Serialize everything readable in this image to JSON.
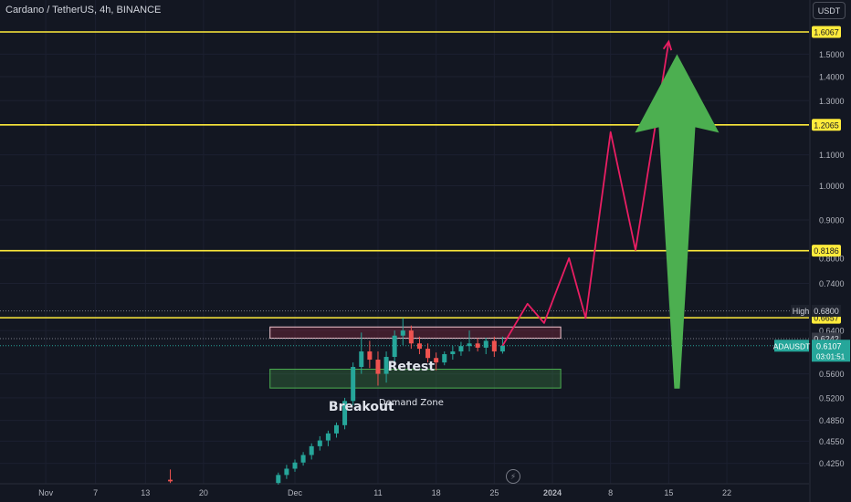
{
  "header": {
    "symbol_title": "Cardano / TetherUS, 4h, BINANCE",
    "currency_button": "USDT"
  },
  "colors": {
    "background": "#131722",
    "level_line": "#ffeb3b",
    "projection": "#e91e63",
    "arrow": "#4caf50",
    "candle_up": "#26a69a",
    "candle_down": "#ef5350",
    "axis_text": "#b2b5be",
    "grid": "#2a2e39"
  },
  "icons": {
    "replay": "lightning-icon"
  },
  "chart_data": {
    "type": "candlestick",
    "y_scale": "log",
    "ylim": [
      0.41,
      1.7
    ],
    "x_ticks": [
      {
        "label": "Nov",
        "date": "2023-11-01"
      },
      {
        "label": "7",
        "date": "2023-11-07"
      },
      {
        "label": "13",
        "date": "2023-11-13"
      },
      {
        "label": "20",
        "date": "2023-11-20"
      },
      {
        "label": "Dec",
        "date": "2023-12-01"
      },
      {
        "label": "11",
        "date": "2023-12-11"
      },
      {
        "label": "18",
        "date": "2023-12-18"
      },
      {
        "label": "25",
        "date": "2023-12-25"
      },
      {
        "label": "2024",
        "date": "2024-01-01"
      },
      {
        "label": "8",
        "date": "2024-01-08"
      },
      {
        "label": "15",
        "date": "2024-01-15"
      },
      {
        "label": "22",
        "date": "2024-01-22"
      }
    ],
    "y_ticks": [
      "1.5000",
      "1.4000",
      "1.3000",
      "1.1000",
      "1.0000",
      "0.9000",
      "0.8000",
      "0.7400",
      "0.6400",
      "0.5600",
      "0.5200",
      "0.4850",
      "0.4550",
      "0.4250"
    ],
    "levels": [
      {
        "value": 1.6067,
        "label": "1.6067"
      },
      {
        "value": 1.2065,
        "label": "1.2065"
      },
      {
        "value": 0.8186,
        "label": "0.8186"
      },
      {
        "value": 0.6657,
        "label": "0.6657"
      }
    ],
    "high_marker": {
      "label": "High",
      "value": 0.68,
      "value_label": "0.6800"
    },
    "pre_close": {
      "value": 0.6242,
      "label": "0.6242"
    },
    "current": {
      "name": "ADAUSDT",
      "value": 0.6107,
      "value_label": "0.6107",
      "countdown": "03:01:51"
    },
    "zones": [
      {
        "name": "resistance",
        "date_from": "2023-11-28",
        "date_to": "2024-01-02",
        "low": 0.625,
        "high": 0.647
      },
      {
        "name": "Demand Zone",
        "label": "Demand Zone",
        "date_from": "2023-11-28",
        "date_to": "2024-01-02",
        "low": 0.536,
        "high": 0.568
      }
    ],
    "annotations": [
      {
        "text": "Breakout",
        "date": "2023-12-09",
        "value": 0.5
      },
      {
        "text": "Retest",
        "date": "2023-12-15",
        "value": 0.566
      },
      {
        "text": "Demand Zone",
        "date": "2023-12-15",
        "value": 0.508
      }
    ],
    "projection_path": [
      {
        "date": "2023-12-26",
        "value": 0.6107
      },
      {
        "date": "2023-12-29",
        "value": 0.695
      },
      {
        "date": "2023-12-31",
        "value": 0.655
      },
      {
        "date": "2024-01-03",
        "value": 0.8
      },
      {
        "date": "2024-01-05",
        "value": 0.665
      },
      {
        "date": "2024-01-08",
        "value": 1.18
      },
      {
        "date": "2024-01-11",
        "value": 0.82
      },
      {
        "date": "2024-01-15",
        "value": 1.56
      }
    ],
    "arrow": {
      "date": "2024-01-16",
      "from": 0.535,
      "to": 1.5
    },
    "candles": [
      {
        "date": "2023-11-16",
        "o": 0.404,
        "h": 0.417,
        "l": 0.4,
        "c": 0.402
      },
      {
        "date": "2023-11-29",
        "o": 0.4,
        "h": 0.413,
        "l": 0.398,
        "c": 0.41
      },
      {
        "date": "2023-11-30",
        "o": 0.41,
        "h": 0.423,
        "l": 0.405,
        "c": 0.418
      },
      {
        "date": "2023-12-01",
        "o": 0.418,
        "h": 0.43,
        "l": 0.414,
        "c": 0.426
      },
      {
        "date": "2023-12-02",
        "o": 0.426,
        "h": 0.44,
        "l": 0.422,
        "c": 0.436
      },
      {
        "date": "2023-12-03",
        "o": 0.436,
        "h": 0.452,
        "l": 0.43,
        "c": 0.448
      },
      {
        "date": "2023-12-04",
        "o": 0.448,
        "h": 0.462,
        "l": 0.442,
        "c": 0.456
      },
      {
        "date": "2023-12-05",
        "o": 0.456,
        "h": 0.47,
        "l": 0.448,
        "c": 0.466
      },
      {
        "date": "2023-12-06",
        "o": 0.466,
        "h": 0.482,
        "l": 0.46,
        "c": 0.478
      },
      {
        "date": "2023-12-07",
        "o": 0.478,
        "h": 0.52,
        "l": 0.472,
        "c": 0.515
      },
      {
        "date": "2023-12-08",
        "o": 0.515,
        "h": 0.58,
        "l": 0.508,
        "c": 0.572
      },
      {
        "date": "2023-12-09",
        "o": 0.572,
        "h": 0.636,
        "l": 0.56,
        "c": 0.6
      },
      {
        "date": "2023-12-10",
        "o": 0.6,
        "h": 0.62,
        "l": 0.57,
        "c": 0.585
      },
      {
        "date": "2023-12-11",
        "o": 0.585,
        "h": 0.6,
        "l": 0.54,
        "c": 0.56
      },
      {
        "date": "2023-12-12",
        "o": 0.56,
        "h": 0.6,
        "l": 0.545,
        "c": 0.59
      },
      {
        "date": "2023-12-13",
        "o": 0.59,
        "h": 0.64,
        "l": 0.58,
        "c": 0.63
      },
      {
        "date": "2023-12-14",
        "o": 0.63,
        "h": 0.665,
        "l": 0.612,
        "c": 0.64
      },
      {
        "date": "2023-12-15",
        "o": 0.64,
        "h": 0.65,
        "l": 0.605,
        "c": 0.615
      },
      {
        "date": "2023-12-16",
        "o": 0.615,
        "h": 0.628,
        "l": 0.595,
        "c": 0.605
      },
      {
        "date": "2023-12-17",
        "o": 0.605,
        "h": 0.615,
        "l": 0.58,
        "c": 0.588
      },
      {
        "date": "2023-12-18",
        "o": 0.588,
        "h": 0.598,
        "l": 0.566,
        "c": 0.58
      },
      {
        "date": "2023-12-19",
        "o": 0.58,
        "h": 0.6,
        "l": 0.575,
        "c": 0.595
      },
      {
        "date": "2023-12-20",
        "o": 0.595,
        "h": 0.61,
        "l": 0.585,
        "c": 0.6
      },
      {
        "date": "2023-12-21",
        "o": 0.6,
        "h": 0.618,
        "l": 0.592,
        "c": 0.61
      },
      {
        "date": "2023-12-22",
        "o": 0.61,
        "h": 0.64,
        "l": 0.6,
        "c": 0.615
      },
      {
        "date": "2023-12-23",
        "o": 0.615,
        "h": 0.625,
        "l": 0.6,
        "c": 0.607
      },
      {
        "date": "2023-12-24",
        "o": 0.607,
        "h": 0.626,
        "l": 0.595,
        "c": 0.62
      },
      {
        "date": "2023-12-25",
        "o": 0.62,
        "h": 0.628,
        "l": 0.59,
        "c": 0.6
      },
      {
        "date": "2023-12-26",
        "o": 0.6,
        "h": 0.628,
        "l": 0.596,
        "c": 0.6107
      }
    ]
  }
}
